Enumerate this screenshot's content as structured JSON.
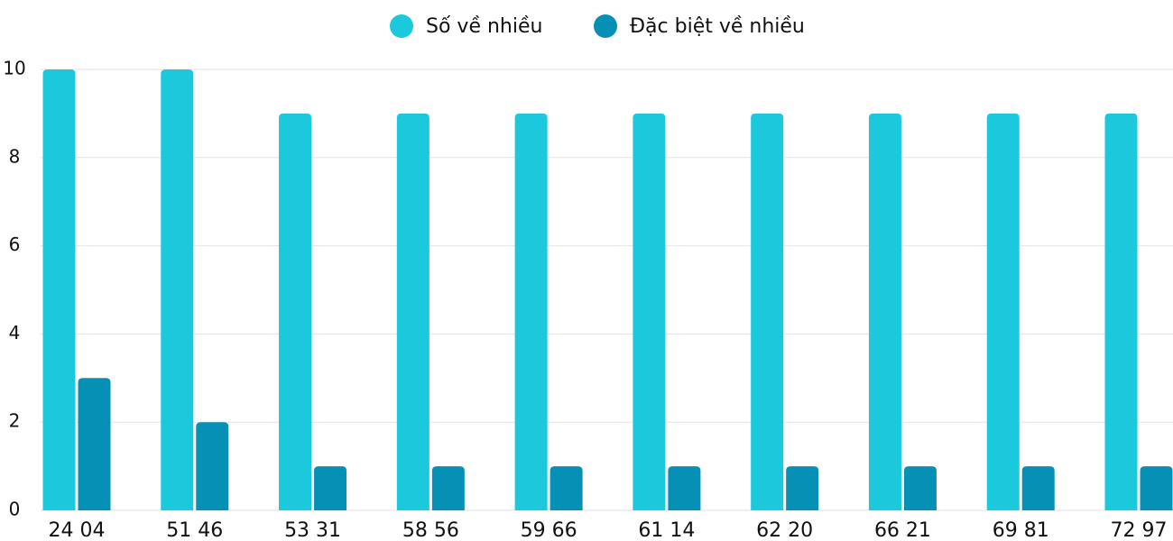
{
  "chart_data": {
    "type": "bar",
    "categories": [
      "24 04",
      "51 46",
      "53 31",
      "58 56",
      "59 66",
      "61 14",
      "62 20",
      "66 21",
      "69 81",
      "72 97"
    ],
    "series": [
      {
        "name": "Số về nhiều",
        "color": "#1bc8dc",
        "values": [
          10,
          10,
          9,
          9,
          9,
          9,
          9,
          9,
          9,
          9
        ]
      },
      {
        "name": "Đặc biệt về nhiều",
        "color": "#0790b5",
        "values": [
          3,
          2,
          1,
          1,
          1,
          1,
          1,
          1,
          1,
          1
        ]
      }
    ],
    "ylim": [
      0,
      10
    ],
    "yticks": [
      0,
      2,
      4,
      6,
      8,
      10
    ],
    "grid": true,
    "legend": "top"
  }
}
